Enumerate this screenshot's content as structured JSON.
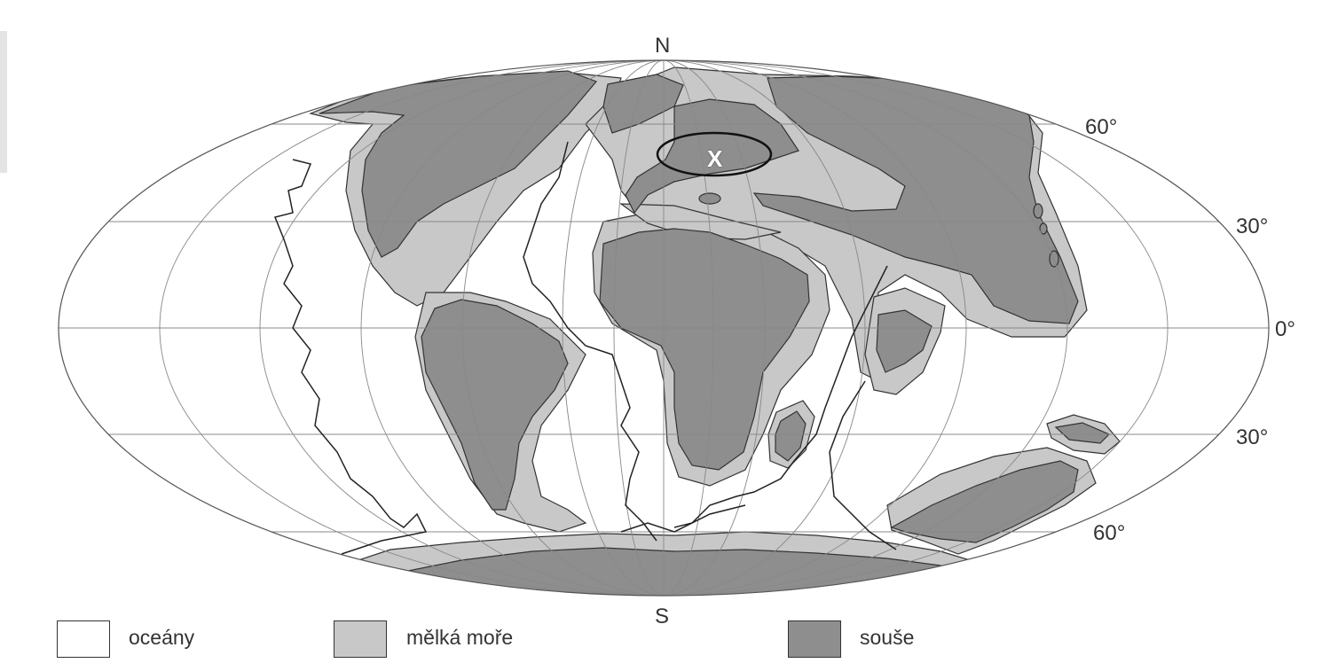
{
  "labels": {
    "north": "N",
    "south": "S",
    "marker": "X",
    "lat_n60": "60°",
    "lat_n30": "30°",
    "lat_0": "0°",
    "lat_s30": "30°",
    "lat_s60": "60°"
  },
  "legend": {
    "ocean": "oceány",
    "shallow": "mělká moře",
    "land": "souše"
  },
  "colors": {
    "ocean": "#ffffff",
    "shallow_sea": "#c8c8c8",
    "land": "#8e8e8e",
    "outline": "#333333",
    "graticule": "#888888"
  }
}
